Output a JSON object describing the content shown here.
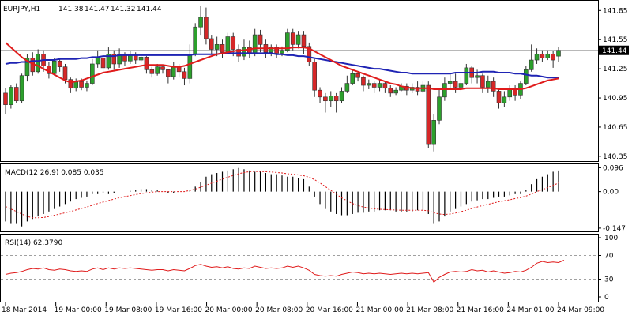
{
  "chart_data": [
    {
      "type": "candlestick",
      "title": "EURJPY,H1",
      "ohlc_header": [
        "141.38",
        "141.47",
        "141.32",
        "141.44"
      ],
      "ylim": [
        140.3,
        141.95
      ],
      "y_ticks": [
        "141.85",
        "141.55",
        "141.25",
        "140.95",
        "140.65",
        "140.35"
      ],
      "y_tick_values": [
        141.85,
        141.55,
        141.25,
        140.95,
        140.65,
        140.35
      ],
      "last_price": 141.44,
      "last_price_label": "141.44",
      "x_ticks": [
        "18 Mar 2014",
        "19 Mar 00:00",
        "19 Mar 08:00",
        "19 Mar 16:00",
        "20 Mar 00:00",
        "20 Mar 08:00",
        "20 Mar 16:00",
        "21 Mar 00:00",
        "21 Mar 08:00",
        "21 Mar 16:00",
        "24 Mar 01:00",
        "24 Mar 09:00"
      ],
      "candles": [
        [
          141.0,
          140.88,
          140.78,
          141.05
        ],
        [
          140.88,
          141.06,
          140.84,
          141.08
        ],
        [
          141.06,
          140.92,
          140.9,
          141.1
        ],
        [
          140.92,
          141.18,
          140.9,
          141.2
        ],
        [
          141.18,
          141.36,
          141.12,
          141.4
        ],
        [
          141.36,
          141.22,
          141.18,
          141.42
        ],
        [
          141.22,
          141.4,
          141.2,
          141.45
        ],
        [
          141.4,
          141.28,
          141.22,
          141.44
        ],
        [
          141.28,
          141.2,
          141.15,
          141.32
        ],
        [
          141.2,
          141.33,
          141.18,
          141.36
        ],
        [
          141.33,
          141.27,
          141.22,
          141.35
        ],
        [
          141.27,
          141.14,
          141.1,
          141.3
        ],
        [
          141.14,
          141.05,
          141.0,
          141.16
        ],
        [
          141.05,
          141.12,
          141.02,
          141.15
        ],
        [
          141.12,
          141.06,
          141.03,
          141.15
        ],
        [
          141.06,
          141.1,
          141.02,
          141.13
        ],
        [
          141.1,
          141.3,
          141.08,
          141.35
        ],
        [
          141.3,
          141.36,
          141.26,
          141.44
        ],
        [
          141.36,
          141.26,
          141.2,
          141.39
        ],
        [
          141.26,
          141.4,
          141.24,
          141.47
        ],
        [
          141.4,
          141.3,
          141.24,
          141.44
        ],
        [
          141.3,
          141.4,
          141.26,
          141.46
        ],
        [
          141.4,
          141.33,
          141.28,
          141.42
        ],
        [
          141.33,
          141.4,
          141.3,
          141.43
        ],
        [
          141.4,
          141.34,
          141.3,
          141.42
        ],
        [
          141.34,
          141.37,
          141.32,
          141.4
        ],
        [
          141.37,
          141.24,
          141.2,
          141.38
        ],
        [
          141.24,
          141.2,
          141.16,
          141.27
        ],
        [
          141.2,
          141.27,
          141.18,
          141.3
        ],
        [
          141.27,
          141.24,
          141.2,
          141.29
        ],
        [
          141.24,
          141.17,
          141.1,
          141.25
        ],
        [
          141.17,
          141.28,
          141.14,
          141.32
        ],
        [
          141.28,
          141.22,
          141.16,
          141.3
        ],
        [
          141.22,
          141.15,
          141.08,
          141.26
        ],
        [
          141.15,
          141.4,
          141.1,
          141.5
        ],
        [
          141.4,
          141.68,
          141.38,
          141.72
        ],
        [
          141.68,
          141.78,
          141.6,
          141.9
        ],
        [
          141.78,
          141.56,
          141.5,
          141.88
        ],
        [
          141.56,
          141.45,
          141.4,
          141.6
        ],
        [
          141.45,
          141.5,
          141.38,
          141.58
        ],
        [
          141.5,
          141.42,
          141.36,
          141.55
        ],
        [
          141.42,
          141.58,
          141.4,
          141.62
        ],
        [
          141.58,
          141.45,
          141.38,
          141.62
        ],
        [
          141.45,
          141.38,
          141.32,
          141.5
        ],
        [
          141.38,
          141.47,
          141.34,
          141.55
        ],
        [
          141.47,
          141.4,
          141.36,
          141.54
        ],
        [
          141.4,
          141.6,
          141.38,
          141.66
        ],
        [
          141.6,
          141.5,
          141.42,
          141.65
        ],
        [
          141.5,
          141.42,
          141.36,
          141.55
        ],
        [
          141.42,
          141.47,
          141.38,
          141.5
        ],
        [
          141.47,
          141.41,
          141.36,
          141.5
        ],
        [
          141.41,
          141.44,
          141.38,
          141.48
        ],
        [
          141.44,
          141.62,
          141.42,
          141.66
        ],
        [
          141.62,
          141.5,
          141.44,
          141.66
        ],
        [
          141.5,
          141.6,
          141.46,
          141.64
        ],
        [
          141.6,
          141.48,
          141.4,
          141.64
        ],
        [
          141.48,
          141.32,
          141.28,
          141.52
        ],
        [
          141.32,
          141.03,
          140.96,
          141.35
        ],
        [
          141.03,
          140.96,
          140.9,
          141.06
        ],
        [
          140.96,
          140.92,
          140.8,
          141.0
        ],
        [
          140.92,
          140.97,
          140.86,
          141.02
        ],
        [
          140.97,
          140.92,
          140.8,
          141.0
        ],
        [
          140.92,
          141.02,
          140.9,
          141.06
        ],
        [
          141.02,
          141.1,
          141.0,
          141.18
        ],
        [
          141.1,
          141.2,
          141.08,
          141.25
        ],
        [
          141.2,
          141.16,
          141.12,
          141.22
        ],
        [
          141.16,
          141.08,
          141.02,
          141.18
        ],
        [
          141.08,
          141.1,
          141.04,
          141.14
        ],
        [
          141.1,
          141.06,
          141.0,
          141.12
        ],
        [
          141.06,
          141.1,
          141.02,
          141.14
        ],
        [
          141.1,
          141.05,
          141.0,
          141.12
        ],
        [
          141.05,
          141.0,
          140.96,
          141.08
        ],
        [
          141.0,
          141.03,
          140.98,
          141.06
        ],
        [
          141.03,
          141.07,
          141.02,
          141.1
        ],
        [
          141.07,
          141.03,
          140.98,
          141.1
        ],
        [
          141.03,
          141.06,
          141.0,
          141.1
        ],
        [
          141.06,
          141.02,
          140.98,
          141.12
        ],
        [
          141.02,
          141.08,
          141.0,
          141.12
        ],
        [
          141.08,
          140.47,
          140.43,
          141.12
        ],
        [
          140.47,
          140.72,
          140.4,
          140.78
        ],
        [
          140.72,
          140.96,
          140.68,
          141.04
        ],
        [
          140.96,
          141.1,
          140.92,
          141.16
        ],
        [
          141.1,
          141.12,
          141.04,
          141.2
        ],
        [
          141.12,
          141.06,
          141.0,
          141.2
        ],
        [
          141.06,
          141.1,
          141.02,
          141.16
        ],
        [
          141.1,
          141.26,
          141.08,
          141.3
        ],
        [
          141.26,
          141.16,
          141.1,
          141.28
        ],
        [
          141.16,
          141.18,
          141.1,
          141.24
        ],
        [
          141.18,
          141.06,
          141.0,
          141.2
        ],
        [
          141.06,
          141.12,
          141.0,
          141.18
        ],
        [
          141.12,
          141.02,
          140.96,
          141.16
        ],
        [
          141.02,
          140.9,
          140.84,
          141.05
        ],
        [
          140.9,
          140.96,
          140.86,
          141.02
        ],
        [
          140.96,
          141.04,
          140.92,
          141.08
        ],
        [
          141.04,
          140.98,
          140.92,
          141.08
        ],
        [
          140.98,
          141.1,
          140.94,
          141.12
        ],
        [
          141.1,
          141.24,
          141.08,
          141.28
        ],
        [
          141.24,
          141.34,
          141.22,
          141.5
        ],
        [
          141.34,
          141.4,
          141.3,
          141.46
        ],
        [
          141.4,
          141.36,
          141.32,
          141.44
        ],
        [
          141.36,
          141.4,
          141.34,
          141.44
        ],
        [
          141.4,
          141.34,
          141.26,
          141.43
        ],
        [
          141.38,
          141.44,
          141.32,
          141.47
        ]
      ],
      "ma_red": [
        141.52,
        141.47,
        141.42,
        141.37,
        141.33,
        141.3,
        141.28,
        141.25,
        141.22,
        141.19,
        141.16,
        141.13,
        141.11,
        141.12,
        141.13,
        141.15,
        141.17,
        141.19,
        141.21,
        141.22,
        141.23,
        141.24,
        141.25,
        141.26,
        141.27,
        141.28,
        141.29,
        141.29,
        141.29,
        141.29,
        141.28,
        141.27,
        141.27,
        141.28,
        141.3,
        141.32,
        141.34,
        141.36,
        141.38,
        141.4,
        141.41,
        141.42,
        141.43,
        141.44,
        141.44,
        141.45,
        141.46,
        141.46,
        141.46,
        141.46,
        141.46,
        141.46,
        141.46,
        141.47,
        141.47,
        141.47,
        141.46,
        141.43,
        141.4,
        141.37,
        141.34,
        141.31,
        141.28,
        141.26,
        141.24,
        141.22,
        141.2,
        141.18,
        141.16,
        141.14,
        141.12,
        141.1,
        141.09,
        141.07,
        141.06,
        141.05,
        141.05,
        141.05,
        141.05,
        141.04,
        141.04,
        141.04,
        141.04,
        141.04,
        141.04,
        141.05,
        141.05,
        141.05,
        141.05,
        141.05,
        141.05,
        141.04,
        141.04,
        141.04,
        141.04,
        141.04,
        141.05,
        141.07,
        141.09,
        141.11,
        141.13,
        141.14,
        141.15
      ],
      "ma_blue": [
        141.3,
        141.31,
        141.31,
        141.32,
        141.32,
        141.33,
        141.33,
        141.34,
        141.34,
        141.34,
        141.35,
        141.35,
        141.35,
        141.35,
        141.36,
        141.36,
        141.37,
        141.37,
        141.38,
        141.38,
        141.38,
        141.39,
        141.39,
        141.39,
        141.39,
        141.39,
        141.39,
        141.39,
        141.39,
        141.39,
        141.39,
        141.39,
        141.39,
        141.39,
        141.39,
        141.4,
        141.4,
        141.4,
        141.4,
        141.4,
        141.41,
        141.41,
        141.41,
        141.41,
        141.41,
        141.41,
        141.41,
        141.41,
        141.41,
        141.41,
        141.4,
        141.4,
        141.39,
        141.39,
        141.38,
        141.38,
        141.37,
        141.36,
        141.35,
        141.34,
        141.33,
        141.32,
        141.31,
        141.3,
        141.29,
        141.28,
        141.27,
        141.26,
        141.25,
        141.25,
        141.24,
        141.23,
        141.22,
        141.21,
        141.21,
        141.2,
        141.2,
        141.2,
        141.2,
        141.2,
        141.2,
        141.2,
        141.2,
        141.21,
        141.21,
        141.21,
        141.21,
        141.21,
        141.22,
        141.22,
        141.22,
        141.21,
        141.21,
        141.21,
        141.2,
        141.2,
        141.19,
        141.18,
        141.18,
        141.17,
        141.16,
        141.16,
        141.16
      ]
    },
    {
      "type": "histogram-with-signal",
      "title": "MACD(12,26,9) 0.085 0.035",
      "ylim": [
        -0.16,
        0.11
      ],
      "y_ticks": [
        "0.096",
        "0.00",
        "-0.147"
      ],
      "y_tick_values": [
        0.096,
        0.0,
        -0.147
      ],
      "macd": [
        -0.12,
        -0.13,
        -0.13,
        -0.14,
        -0.12,
        -0.11,
        -0.1,
        -0.09,
        -0.08,
        -0.07,
        -0.06,
        -0.05,
        -0.04,
        -0.03,
        -0.025,
        -0.02,
        -0.01,
        -0.01,
        -0.005,
        -0.01,
        -0.005,
        0.0,
        0.0,
        0.003,
        0.005,
        0.01,
        0.01,
        0.008,
        0.005,
        0.0,
        -0.005,
        -0.005,
        0.0,
        0.0,
        0.005,
        0.02,
        0.04,
        0.06,
        0.07,
        0.075,
        0.08,
        0.085,
        0.09,
        0.095,
        0.09,
        0.085,
        0.08,
        0.08,
        0.075,
        0.07,
        0.07,
        0.065,
        0.06,
        0.06,
        0.055,
        0.05,
        0.02,
        -0.02,
        -0.05,
        -0.07,
        -0.08,
        -0.09,
        -0.095,
        -0.095,
        -0.09,
        -0.085,
        -0.085,
        -0.08,
        -0.08,
        -0.075,
        -0.075,
        -0.075,
        -0.08,
        -0.08,
        -0.08,
        -0.08,
        -0.075,
        -0.075,
        -0.09,
        -0.13,
        -0.12,
        -0.1,
        -0.08,
        -0.07,
        -0.06,
        -0.05,
        -0.04,
        -0.035,
        -0.03,
        -0.03,
        -0.025,
        -0.02,
        -0.02,
        -0.015,
        -0.01,
        -0.01,
        0.005,
        0.03,
        0.05,
        0.06,
        0.07,
        0.08,
        0.085
      ],
      "signal": [
        -0.06,
        -0.07,
        -0.08,
        -0.09,
        -0.1,
        -0.105,
        -0.105,
        -0.104,
        -0.1,
        -0.095,
        -0.09,
        -0.085,
        -0.08,
        -0.074,
        -0.068,
        -0.062,
        -0.055,
        -0.048,
        -0.042,
        -0.036,
        -0.03,
        -0.025,
        -0.02,
        -0.016,
        -0.012,
        -0.008,
        -0.005,
        -0.002,
        0.0,
        0.0,
        0.0,
        0.0,
        0.0,
        0.0,
        0.005,
        0.01,
        0.018,
        0.026,
        0.034,
        0.042,
        0.05,
        0.058,
        0.065,
        0.072,
        0.077,
        0.08,
        0.081,
        0.081,
        0.08,
        0.079,
        0.077,
        0.075,
        0.072,
        0.07,
        0.067,
        0.064,
        0.058,
        0.048,
        0.035,
        0.02,
        0.005,
        -0.01,
        -0.025,
        -0.037,
        -0.048,
        -0.056,
        -0.062,
        -0.066,
        -0.069,
        -0.071,
        -0.072,
        -0.073,
        -0.074,
        -0.075,
        -0.075,
        -0.075,
        -0.075,
        -0.075,
        -0.077,
        -0.085,
        -0.09,
        -0.092,
        -0.09,
        -0.086,
        -0.081,
        -0.075,
        -0.068,
        -0.062,
        -0.056,
        -0.051,
        -0.046,
        -0.041,
        -0.037,
        -0.033,
        -0.028,
        -0.024,
        -0.018,
        -0.01,
        0.0,
        0.008,
        0.016,
        0.025,
        0.035
      ]
    },
    {
      "type": "line",
      "title": "RSI(14) 62.3790",
      "ylim": [
        0,
        100
      ],
      "y_ticks": [
        "100",
        "70",
        "30",
        "0"
      ],
      "y_tick_values": [
        100,
        70,
        30,
        0
      ],
      "levels": [
        70,
        30
      ],
      "values": [
        38,
        40,
        41,
        43,
        46,
        48,
        47,
        49,
        46,
        45,
        47,
        46,
        44,
        43,
        44,
        43,
        47,
        49,
        46,
        49,
        47,
        49,
        48,
        49,
        48,
        47,
        46,
        45,
        46,
        46,
        44,
        46,
        45,
        44,
        48,
        53,
        55,
        52,
        50,
        51,
        49,
        51,
        48,
        47,
        49,
        48,
        52,
        50,
        48,
        49,
        48,
        49,
        52,
        50,
        52,
        49,
        45,
        38,
        36,
        35,
        36,
        35,
        38,
        40,
        42,
        41,
        39,
        40,
        39,
        40,
        39,
        38,
        39,
        40,
        39,
        40,
        39,
        40,
        41,
        25,
        33,
        38,
        42,
        43,
        42,
        43,
        46,
        44,
        45,
        42,
        44,
        42,
        40,
        41,
        43,
        42,
        45,
        50,
        57,
        60,
        58,
        59,
        58,
        62
      ]
    }
  ]
}
